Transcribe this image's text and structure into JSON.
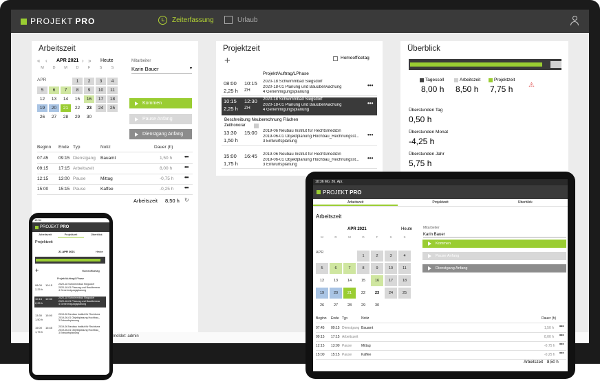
{
  "app": {
    "brand_prefix": "PROJEKT",
    "brand_suffix": "PRO"
  },
  "nav": {
    "zeit": "Zeiterfassung",
    "urlaub": "Urlaub"
  },
  "colors": {
    "accent": "#9acd32",
    "dark": "#3a3a3a",
    "gray_btn": "#8c8c8c",
    "blue": "#a9c4e4"
  },
  "arbeitszeit": {
    "title": "Arbeitszeit",
    "month": "APR 2021",
    "today": "Heute",
    "weekdays": [
      "M",
      "D",
      "M",
      "D",
      "F",
      "S",
      "S"
    ],
    "month_label": "APR",
    "weeks": [
      [
        "",
        "",
        "",
        "1",
        "2",
        "3",
        "4"
      ],
      [
        "5",
        "6",
        "7",
        "8",
        "9",
        "10",
        "11"
      ],
      [
        "12",
        "13",
        "14",
        "15",
        "16",
        "17",
        "18"
      ],
      [
        "19",
        "20",
        "21",
        "22",
        "23",
        "24",
        "25"
      ],
      [
        "26",
        "27",
        "28",
        "29",
        "30",
        "",
        ""
      ]
    ],
    "mitarbeiter_label": "Mitarbeiter",
    "mitarbeiter": "Karin Bauer",
    "btn_kommen": "Kommen",
    "btn_pause": "Pause Anfang",
    "btn_dienstgang": "Dienstgang Anfang",
    "cols": {
      "beginn": "Beginn",
      "ende": "Ende",
      "typ": "Typ",
      "notiz": "Notiz",
      "dauer": "Dauer (h)"
    },
    "rows": [
      {
        "beginn": "07:45",
        "ende": "09:15",
        "typ": "Dienstgang",
        "notiz": "Bauamt",
        "dauer": "1,50 h"
      },
      {
        "beginn": "09:15",
        "ende": "17:15",
        "typ": "Arbeitszeit",
        "notiz": "",
        "dauer": "8,00 h"
      },
      {
        "beginn": "12:15",
        "ende": "13:00",
        "typ": "Pause",
        "notiz": "Mittag",
        "dauer": "-0,75 h"
      },
      {
        "beginn": "15:00",
        "ende": "15:15",
        "typ": "Pause",
        "notiz": "Kaffee",
        "dauer": "-0,25 h"
      }
    ],
    "total_label": "Arbeitszeit",
    "total": "8,50 h"
  },
  "projektzeit": {
    "title": "Projektzeit",
    "homeoffice": "Homeofficetag",
    "col_header": "Projekt/Auftrag/LPhase",
    "entries": [
      {
        "start": "08:00",
        "end": "10:15",
        "dur": "2,25 h",
        "code": "ZH",
        "lines": [
          "2020-18 Schwimmbad Siegsdorf",
          "2020-18-01 Planung und Bauüberwachung",
          "4 Genehmigungsplanung"
        ]
      },
      {
        "start": "10:15",
        "end": "12:30",
        "dur": "2,25 h",
        "code": "ZH",
        "lines": [
          "2020-18 Schwimmbad Siegsdorf",
          "2020-18-01 Planung und Bauüberwachung",
          "4 Genehmigungsplanung"
        ]
      },
      {
        "start": "13:30",
        "end": "15:00",
        "dur": "1,50 h",
        "code": "",
        "lines": [
          "2019-06 Neubau Institut für Rechtsmedizin",
          "2019-06-01 Objektplanung Hochbau_Rechnungsst...",
          "3 Entwurfsplanung"
        ]
      },
      {
        "start": "15:00",
        "end": "16:45",
        "dur": "1,75 h",
        "code": "",
        "lines": [
          "2019-06 Neubau Institut für Rechtsmedizin",
          "2019-06-01 Objektplanung Hochbau_Rechnungsst...",
          "3 Entwurfsplanung"
        ]
      }
    ],
    "beschreibung": "Beschreibung Neuberechnung Flächen",
    "zeithonorar": "Zeithonorar"
  },
  "ueberblick": {
    "title": "Überblick",
    "progress": 0.96,
    "legend": [
      {
        "label": "Tagessoll",
        "value": "8,00 h",
        "color": "#444444"
      },
      {
        "label": "Arbeitszeit",
        "value": "8,50 h",
        "color": "#cfcfcf"
      },
      {
        "label": "Projektzeit",
        "value": "7,75 h",
        "color": "#9acd32"
      }
    ],
    "stats": [
      {
        "label": "Überstunden Tag",
        "value": "0,50 h"
      },
      {
        "label": "Überstunden Monat",
        "value": "-4,25 h"
      },
      {
        "label": "Überstunden Jahr",
        "value": "5,75 h"
      }
    ]
  },
  "status": {
    "text": "Angemeldet: admin"
  },
  "phone": {
    "time": "15:34",
    "tabs": [
      "Arbeitszeit",
      "Projektzeit",
      "Überblick"
    ],
    "title": "Projektzeit",
    "date": "21 APR 2021",
    "today": "Heute"
  },
  "tablet": {
    "time": "10:36",
    "date": "Mo. 26. Apr.",
    "tabs": [
      "Arbeitszeit",
      "Projektzeit",
      "Überblick"
    ]
  }
}
